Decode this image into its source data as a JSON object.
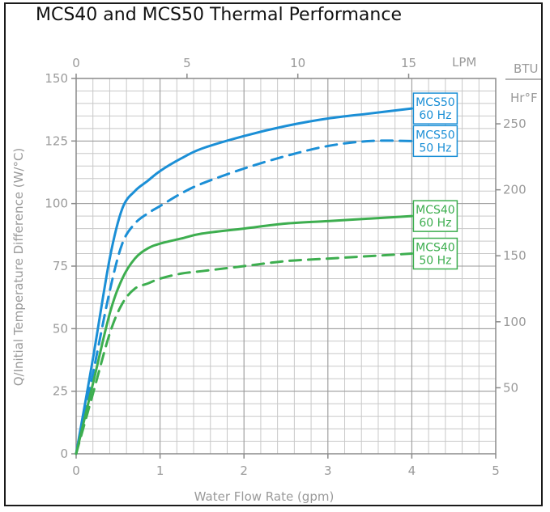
{
  "chart_data": {
    "type": "line",
    "title": "MCS40 and MCS50 Thermal Performance",
    "xlabel": "Water Flow Rate (gpm)",
    "ylabel": "Q/Initial Temperature Difference (W/°C)",
    "xlim": [
      0,
      5
    ],
    "ylim": [
      0,
      150
    ],
    "x_ticks": [
      "0",
      "1",
      "2",
      "3",
      "4",
      "5"
    ],
    "y_ticks": [
      "0",
      "25",
      "50",
      "75",
      "100",
      "125",
      "150"
    ],
    "top_axis": {
      "unit": "LPM",
      "ticks": [
        "0",
        "5",
        "10",
        "15"
      ],
      "values": [
        0,
        5,
        10,
        15
      ],
      "gpm_per_unit": 0.26417
    },
    "right_axis": {
      "unit_top": "BTU",
      "unit_bottom": "Hr°F",
      "ticks": [
        "50",
        "100",
        "150",
        "200",
        "250"
      ],
      "values": [
        50,
        100,
        150,
        200,
        250
      ],
      "wc_per_unit": 0.5275
    },
    "grid": true,
    "series": [
      {
        "name": "MCS50 60 Hz",
        "color": "#1b8fd6",
        "dash": false,
        "label_line1": "MCS50",
        "label_line2": "60 Hz",
        "x": [
          0.0,
          0.2,
          0.4,
          0.55,
          0.7,
          0.85,
          1.0,
          1.25,
          1.5,
          2.0,
          2.5,
          3.0,
          3.5,
          4.0
        ],
        "y": [
          0,
          38,
          78,
          98,
          105,
          109,
          113,
          118,
          122,
          127,
          131,
          134,
          136,
          138
        ]
      },
      {
        "name": "MCS50 50 Hz",
        "color": "#1b8fd6",
        "dash": true,
        "label_line1": "MCS50",
        "label_line2": "50 Hz",
        "x": [
          0.0,
          0.2,
          0.4,
          0.55,
          0.7,
          0.85,
          1.0,
          1.25,
          1.5,
          2.0,
          2.5,
          3.0,
          3.5,
          4.0
        ],
        "y": [
          0,
          32,
          65,
          84,
          92,
          96,
          99,
          104,
          108,
          114,
          119,
          123,
          125,
          125
        ]
      },
      {
        "name": "MCS40 60 Hz",
        "color": "#3dae4f",
        "dash": false,
        "label_line1": "MCS40",
        "label_line2": "60 Hz",
        "x": [
          0.0,
          0.2,
          0.4,
          0.55,
          0.7,
          0.85,
          1.0,
          1.25,
          1.5,
          2.0,
          2.5,
          3.0,
          3.5,
          4.0
        ],
        "y": [
          0,
          28,
          56,
          70,
          78,
          82,
          84,
          86,
          88,
          90,
          92,
          93,
          94,
          95
        ]
      },
      {
        "name": "MCS40 50 Hz",
        "color": "#3dae4f",
        "dash": true,
        "label_line1": "MCS40",
        "label_line2": "50 Hz",
        "x": [
          0.0,
          0.2,
          0.4,
          0.55,
          0.7,
          0.85,
          1.0,
          1.25,
          1.5,
          2.0,
          2.5,
          3.0,
          3.5,
          4.0
        ],
        "y": [
          0,
          24,
          48,
          60,
          66,
          68,
          70,
          72,
          73,
          75,
          77,
          78,
          79,
          80
        ]
      }
    ]
  }
}
